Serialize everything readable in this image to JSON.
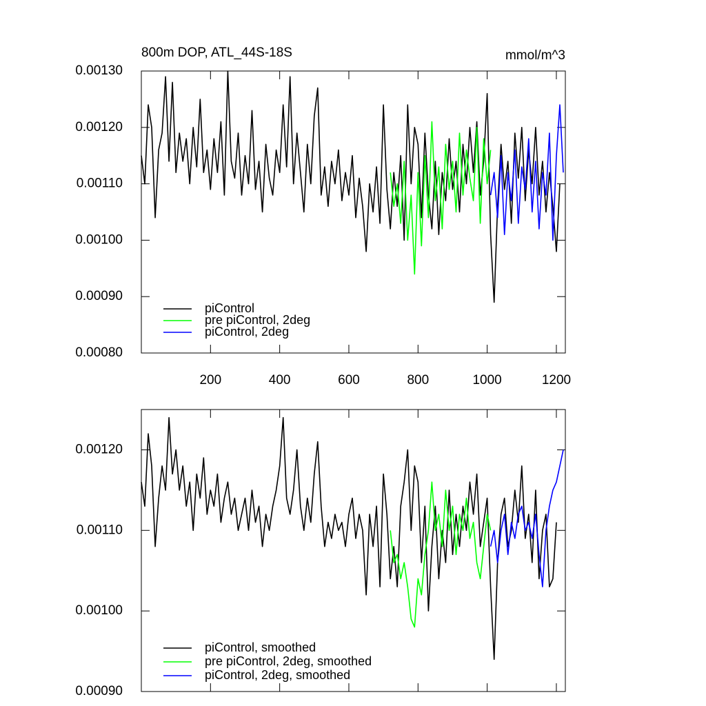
{
  "chart_data": [
    {
      "type": "line",
      "title": "800m DOP, ATL_44S-18S",
      "units_label": "mmol/m^3",
      "xlim": [
        0,
        1226
      ],
      "xticks": [
        200,
        400,
        600,
        800,
        1000,
        1200
      ],
      "ylim": [
        0.0008,
        0.0013
      ],
      "yticks": [
        {
          "value": 0.0008,
          "label": "0.00080"
        },
        {
          "value": 0.0009,
          "label": "0.00090"
        },
        {
          "value": 0.001,
          "label": "0.00100"
        },
        {
          "value": 0.0011,
          "label": "0.00110"
        },
        {
          "value": 0.0012,
          "label": "0.00120"
        },
        {
          "value": 0.0013,
          "label": "0.00130"
        }
      ],
      "legend": "lower left",
      "series": [
        {
          "name": "piControl",
          "color": "#000000",
          "x": [
            0,
            10,
            20,
            30,
            40,
            50,
            60,
            70,
            80,
            90,
            100,
            110,
            120,
            130,
            140,
            150,
            160,
            170,
            180,
            190,
            200,
            210,
            220,
            230,
            240,
            250,
            260,
            270,
            280,
            290,
            300,
            310,
            320,
            330,
            340,
            350,
            360,
            370,
            380,
            390,
            400,
            410,
            420,
            430,
            440,
            450,
            460,
            470,
            480,
            490,
            500,
            510,
            520,
            530,
            540,
            550,
            560,
            570,
            580,
            590,
            600,
            610,
            620,
            630,
            640,
            650,
            660,
            670,
            680,
            690,
            700,
            710,
            720,
            730,
            740,
            750,
            760,
            770,
            780,
            790,
            800,
            810,
            820,
            830,
            840,
            850,
            860,
            870,
            880,
            890,
            900,
            910,
            920,
            930,
            940,
            950,
            960,
            970,
            980,
            990,
            1000,
            1010,
            1020,
            1030,
            1040,
            1050,
            1060,
            1070,
            1080,
            1090,
            1100,
            1110,
            1120,
            1130,
            1140,
            1150,
            1160,
            1170,
            1180,
            1190,
            1200,
            1210
          ],
          "values": [
            0.00115,
            0.0011,
            0.00124,
            0.0012,
            0.00104,
            0.00116,
            0.00119,
            0.00129,
            0.00114,
            0.00128,
            0.00112,
            0.00119,
            0.00114,
            0.00118,
            0.0011,
            0.0012,
            0.00113,
            0.00125,
            0.00112,
            0.00116,
            0.00109,
            0.00118,
            0.00112,
            0.00121,
            0.00108,
            0.0013,
            0.00114,
            0.00111,
            0.00119,
            0.00108,
            0.00115,
            0.0011,
            0.00123,
            0.00109,
            0.00114,
            0.00105,
            0.00117,
            0.00111,
            0.00108,
            0.00116,
            0.00112,
            0.00124,
            0.00113,
            0.00129,
            0.0011,
            0.00119,
            0.00112,
            0.00105,
            0.00117,
            0.0011,
            0.00122,
            0.00127,
            0.00108,
            0.00113,
            0.00106,
            0.00114,
            0.0011,
            0.00116,
            0.00107,
            0.00112,
            0.00108,
            0.00115,
            0.00104,
            0.00111,
            0.00106,
            0.00098,
            0.0011,
            0.00105,
            0.00113,
            0.00103,
            0.00124,
            0.00109,
            0.00102,
            0.00112,
            0.00106,
            0.00115,
            0.001,
            0.00124,
            0.0011,
            0.0012,
            0.00117,
            0.00104,
            0.00119,
            0.00108,
            0.00102,
            0.00114,
            0.00101,
            0.00112,
            0.00107,
            0.00118,
            0.00109,
            0.00114,
            0.00105,
            0.00117,
            0.0011,
            0.0012,
            0.00112,
            0.00121,
            0.00108,
            0.00114,
            0.00126,
            0.00101,
            0.00089,
            0.00106,
            0.00117,
            0.00109,
            0.00114,
            0.00103,
            0.00119,
            0.00111,
            0.0012,
            0.00107,
            0.00116,
            0.0011,
            0.0012,
            0.00108,
            0.00114,
            0.00105,
            0.00112,
            0.00106,
            0.00098,
            0.0011
          ]
        },
        {
          "name": "pre piControl, 2deg",
          "color": "#00ff00",
          "x": [
            720,
            730,
            740,
            750,
            760,
            770,
            780,
            790,
            800,
            810,
            820,
            830,
            840,
            850,
            860,
            870,
            880,
            890,
            900,
            910,
            920,
            930,
            940,
            950,
            960,
            970,
            980,
            990,
            1000,
            1010
          ],
          "values": [
            0.00112,
            0.00106,
            0.0011,
            0.00103,
            0.00114,
            0.001,
            0.00108,
            0.00094,
            0.00112,
            0.00099,
            0.00115,
            0.00104,
            0.00121,
            0.00107,
            0.00113,
            0.00102,
            0.00117,
            0.00109,
            0.00114,
            0.00105,
            0.00119,
            0.00108,
            0.00116,
            0.00111,
            0.00107,
            0.0012,
            0.00103,
            0.00118,
            0.0011,
            0.00116
          ]
        },
        {
          "name": "piControl, 2deg",
          "color": "#0000ff",
          "x": [
            1010,
            1020,
            1030,
            1040,
            1050,
            1060,
            1070,
            1080,
            1090,
            1100,
            1110,
            1120,
            1130,
            1140,
            1150,
            1160,
            1170,
            1180,
            1190,
            1200,
            1210,
            1220
          ],
          "values": [
            0.00108,
            0.00112,
            0.00104,
            0.00115,
            0.00101,
            0.00112,
            0.00107,
            0.00116,
            0.00103,
            0.00113,
            0.00109,
            0.00118,
            0.00105,
            0.00114,
            0.00102,
            0.00112,
            0.00108,
            0.00119,
            0.001,
            0.00115,
            0.00124,
            0.00112
          ]
        }
      ]
    },
    {
      "type": "line",
      "xlim": [
        0,
        1226
      ],
      "xticks": [
        200,
        400,
        600,
        800,
        1000,
        1200
      ],
      "ylim": [
        0.0009,
        0.00125
      ],
      "yticks": [
        {
          "value": 0.0009,
          "label": "0.00090"
        },
        {
          "value": 0.001,
          "label": "0.00100"
        },
        {
          "value": 0.0011,
          "label": "0.00110"
        },
        {
          "value": 0.0012,
          "label": "0.00120"
        }
      ],
      "legend": "lower left",
      "series": [
        {
          "name": "piControl, smoothed",
          "color": "#000000",
          "x": [
            0,
            10,
            20,
            30,
            40,
            50,
            60,
            70,
            80,
            90,
            100,
            110,
            120,
            130,
            140,
            150,
            160,
            170,
            180,
            190,
            200,
            210,
            220,
            230,
            240,
            250,
            260,
            270,
            280,
            290,
            300,
            310,
            320,
            330,
            340,
            350,
            360,
            370,
            380,
            390,
            400,
            410,
            420,
            430,
            440,
            450,
            460,
            470,
            480,
            490,
            500,
            510,
            520,
            530,
            540,
            550,
            560,
            570,
            580,
            590,
            600,
            610,
            620,
            630,
            640,
            650,
            660,
            670,
            680,
            690,
            700,
            710,
            720,
            730,
            740,
            750,
            760,
            770,
            780,
            790,
            800,
            810,
            820,
            830,
            840,
            850,
            860,
            870,
            880,
            890,
            900,
            910,
            920,
            930,
            940,
            950,
            960,
            970,
            980,
            990,
            1000,
            1010,
            1020,
            1030,
            1040,
            1050,
            1060,
            1070,
            1080,
            1090,
            1100,
            1110,
            1120,
            1130,
            1140,
            1150,
            1160,
            1170,
            1180,
            1190,
            1200
          ],
          "values": [
            0.00116,
            0.00113,
            0.00122,
            0.00118,
            0.00108,
            0.00114,
            0.00118,
            0.00115,
            0.00124,
            0.00117,
            0.0012,
            0.00115,
            0.00118,
            0.00113,
            0.00116,
            0.0011,
            0.00117,
            0.00114,
            0.00119,
            0.00112,
            0.00115,
            0.00113,
            0.00117,
            0.00111,
            0.00114,
            0.00116,
            0.00112,
            0.00114,
            0.0011,
            0.00112,
            0.00114,
            0.0011,
            0.00115,
            0.00111,
            0.00113,
            0.00108,
            0.00112,
            0.0011,
            0.00113,
            0.00115,
            0.00118,
            0.00124,
            0.00114,
            0.00112,
            0.00115,
            0.0012,
            0.00113,
            0.0011,
            0.00114,
            0.00111,
            0.00117,
            0.00121,
            0.00113,
            0.00108,
            0.00111,
            0.00109,
            0.00112,
            0.0011,
            0.00111,
            0.00108,
            0.00112,
            0.00114,
            0.00109,
            0.00112,
            0.0011,
            0.00102,
            0.00112,
            0.00108,
            0.00113,
            0.00103,
            0.00117,
            0.00112,
            0.00104,
            0.00108,
            0.00103,
            0.00113,
            0.00116,
            0.0012,
            0.0011,
            0.00118,
            0.00116,
            0.00106,
            0.00113,
            0.001,
            0.00108,
            0.00113,
            0.00104,
            0.0011,
            0.00106,
            0.00115,
            0.00107,
            0.00112,
            0.00108,
            0.00113,
            0.0011,
            0.00116,
            0.00112,
            0.00117,
            0.00108,
            0.00111,
            0.00114,
            0.00103,
            0.00094,
            0.00106,
            0.00112,
            0.00114,
            0.00108,
            0.0011,
            0.00115,
            0.00111,
            0.00118,
            0.00109,
            0.00112,
            0.00106,
            0.00115,
            0.00104,
            0.0011,
            0.00112,
            0.00103,
            0.00104,
            0.00111
          ]
        },
        {
          "name": "pre piControl, 2deg, smoothed",
          "color": "#00ff00",
          "x": [
            720,
            730,
            740,
            750,
            760,
            770,
            780,
            790,
            800,
            810,
            820,
            830,
            840,
            850,
            860,
            870,
            880,
            890,
            900,
            910,
            920,
            930,
            940,
            950,
            960,
            970,
            980,
            990,
            1000,
            1010
          ],
          "values": [
            0.0011,
            0.00106,
            0.00107,
            0.00104,
            0.00106,
            0.00103,
            0.00099,
            0.00098,
            0.00104,
            0.00102,
            0.00107,
            0.0011,
            0.00116,
            0.0011,
            0.00112,
            0.00108,
            0.00115,
            0.0011,
            0.00113,
            0.00107,
            0.00112,
            0.0011,
            0.00114,
            0.00109,
            0.00111,
            0.00106,
            0.00104,
            0.00108,
            0.00112,
            0.0011
          ]
        },
        {
          "name": "piControl, 2deg, smoothed",
          "color": "#0000ff",
          "x": [
            1010,
            1020,
            1030,
            1040,
            1050,
            1060,
            1070,
            1080,
            1090,
            1100,
            1110,
            1120,
            1130,
            1140,
            1150,
            1160,
            1170,
            1180,
            1190,
            1200,
            1210,
            1220
          ],
          "values": [
            0.00108,
            0.0011,
            0.00106,
            0.0011,
            0.00112,
            0.00107,
            0.00111,
            0.00109,
            0.00112,
            0.00113,
            0.0011,
            0.00111,
            0.00109,
            0.00112,
            0.00107,
            0.00103,
            0.0011,
            0.00113,
            0.00115,
            0.00116,
            0.00118,
            0.0012
          ]
        }
      ]
    }
  ]
}
